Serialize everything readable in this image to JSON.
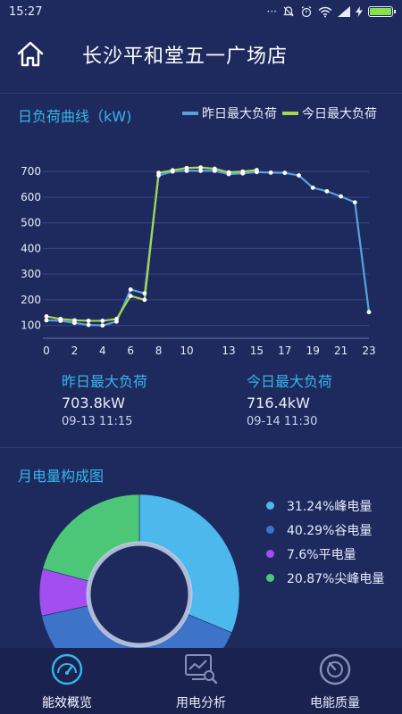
{
  "status_bar": {
    "time": "15:27",
    "dots": "···"
  },
  "header": {
    "title": "长沙平和堂五一广场店"
  },
  "load_section": {
    "title": "日负荷曲线（kW)",
    "legend": [
      {
        "label": "昨日最大负荷",
        "color": "#5aa0dd"
      },
      {
        "label": "今日最大负荷",
        "color": "#a6d84a"
      }
    ],
    "yesterday": {
      "label": "昨日最大负荷",
      "value": "703.8kW",
      "time": "09-13 11:15"
    },
    "today": {
      "label": "今日最大负荷",
      "value": "716.4kW",
      "time": "09-14 11:30"
    }
  },
  "chart_data": [
    {
      "type": "line",
      "title": "日负荷曲线（kW)",
      "x_ticks": [
        "0",
        "2",
        "4",
        "6",
        "8",
        "10",
        "13",
        "15",
        "17",
        "19",
        "21",
        "23"
      ],
      "y_ticks": [
        100,
        200,
        300,
        400,
        500,
        600,
        700
      ],
      "ylim": [
        50,
        760
      ],
      "xlim": [
        0,
        23
      ],
      "grid": "horizontal",
      "series": [
        {
          "name": "昨日最大负荷",
          "color": "#5aa0dd",
          "points": [
            [
              0,
              120
            ],
            [
              1,
              118
            ],
            [
              2,
              110
            ],
            [
              3,
              102
            ],
            [
              4,
              100
            ],
            [
              5,
              115
            ],
            [
              6,
              240
            ],
            [
              7,
              225
            ],
            [
              8,
              685
            ],
            [
              9,
              700
            ],
            [
              10,
              703
            ],
            [
              11,
              703
            ],
            [
              12,
              703
            ],
            [
              13,
              690
            ],
            [
              14,
              693
            ],
            [
              15,
              698
            ],
            [
              16,
              696
            ],
            [
              17,
              695
            ],
            [
              18,
              685
            ],
            [
              19,
              637
            ],
            [
              20,
              623
            ],
            [
              21,
              603
            ],
            [
              22,
              580
            ],
            [
              23,
              152
            ]
          ]
        },
        {
          "name": "今日最大负荷",
          "color": "#a6d84a",
          "points": [
            [
              0,
              135
            ],
            [
              1,
              125
            ],
            [
              2,
              120
            ],
            [
              3,
              118
            ],
            [
              4,
              118
            ],
            [
              5,
              125
            ],
            [
              6,
              215
            ],
            [
              7,
              200
            ],
            [
              8,
              695
            ],
            [
              9,
              705
            ],
            [
              10,
              714
            ],
            [
              11,
              716
            ],
            [
              12,
              711
            ],
            [
              13,
              697
            ],
            [
              14,
              700
            ],
            [
              15,
              706
            ]
          ]
        }
      ]
    },
    {
      "type": "pie",
      "title": "月电量构成图",
      "slices": [
        {
          "label": "峰电量",
          "value": 31.24,
          "color": "#4cb8ec"
        },
        {
          "label": "谷电量",
          "value": 40.29,
          "color": "#3d74c9"
        },
        {
          "label": "平电量",
          "value": 7.6,
          "color": "#a24ef0"
        },
        {
          "label": "尖峰电量",
          "value": 20.87,
          "color": "#4cc777"
        }
      ]
    }
  ],
  "energy_section": {
    "title": "月电量构成图",
    "legend": [
      {
        "text": "31.24%峰电量",
        "color": "#4cb8ec"
      },
      {
        "text": "40.29%谷电量",
        "color": "#3d74c9"
      },
      {
        "text": "7.6%平电量",
        "color": "#a24ef0"
      },
      {
        "text": "20.87%尖峰电量",
        "color": "#4cc777"
      }
    ]
  },
  "bottom_nav": [
    {
      "label": "能效概览",
      "icon": "speedometer-icon",
      "active": true
    },
    {
      "label": "用电分析",
      "icon": "analysis-icon",
      "active": false
    },
    {
      "label": "电能质量",
      "icon": "gauge-icon",
      "active": false
    }
  ]
}
